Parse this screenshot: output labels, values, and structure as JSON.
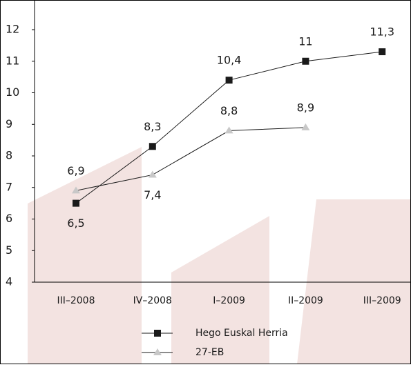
{
  "chart_data": {
    "type": "line",
    "categories": [
      "III–2008",
      "IV–2008",
      "I–2009",
      "II–2009",
      "III–2009"
    ],
    "series": [
      {
        "name": "Hego Euskal Herria",
        "color": "#1a1a1a",
        "marker": "square",
        "values": [
          6.5,
          8.3,
          10.4,
          11,
          11.3
        ],
        "value_labels": [
          "6,5",
          "8,3",
          "10,4",
          "11",
          "11,3"
        ]
      },
      {
        "name": "27-EB",
        "color": "#c8c8c8",
        "marker": "triangle",
        "values": [
          6.9,
          7.4,
          8.8,
          8.9,
          null
        ],
        "value_labels": [
          "6,9",
          "7,4",
          "8,8",
          "8,9",
          null
        ]
      }
    ],
    "ylim": [
      4,
      12
    ],
    "yticks": [
      4,
      5,
      6,
      7,
      8,
      9,
      10,
      11,
      12
    ],
    "grid": false,
    "legend": "bottom"
  }
}
